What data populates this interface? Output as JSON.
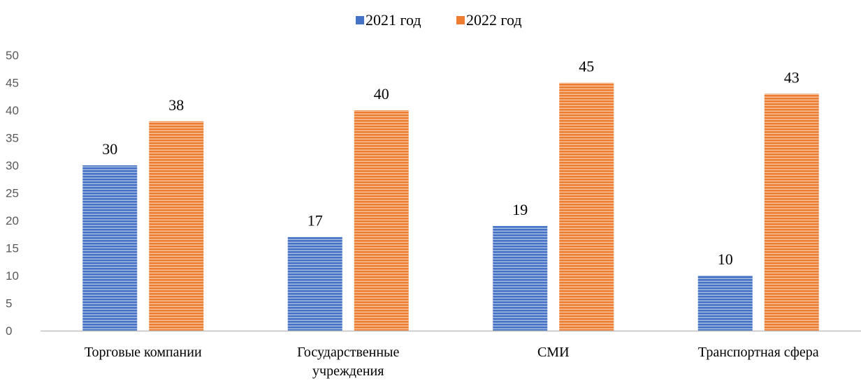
{
  "chart_data": {
    "type": "bar",
    "categories": [
      [
        "Торговые компании"
      ],
      [
        "Государственные",
        "учреждения"
      ],
      [
        "СМИ"
      ],
      [
        "Транспортная сфера"
      ]
    ],
    "series": [
      {
        "name": "2021 год",
        "values": [
          30,
          17,
          19,
          10
        ],
        "color": "#4472C4"
      },
      {
        "name": "2022 год",
        "values": [
          38,
          40,
          45,
          43
        ],
        "color": "#ED7D31"
      }
    ],
    "ylim": [
      0,
      50
    ],
    "yticks": [
      0,
      5,
      10,
      15,
      20,
      25,
      30,
      35,
      40,
      45,
      50
    ],
    "grid": false,
    "legend": "top-center",
    "bar_pattern": "horizontal-stripes"
  }
}
